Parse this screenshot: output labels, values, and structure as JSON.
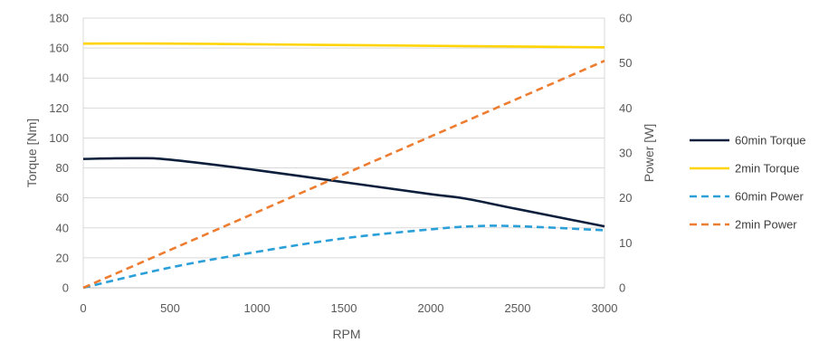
{
  "chart_data": {
    "type": "line",
    "title": "",
    "xlabel": "RPM",
    "ylabel_left": "Torque [Nm]",
    "ylabel_right": "Power [W]",
    "xlim": [
      0,
      3000
    ],
    "ylim_left": [
      0,
      180
    ],
    "ylim_right": [
      0,
      60
    ],
    "x_ticks": [
      0,
      500,
      1000,
      1500,
      2000,
      2500,
      3000
    ],
    "y_left_ticks": [
      0,
      20,
      40,
      60,
      80,
      100,
      120,
      140,
      160,
      180
    ],
    "y_right_ticks": [
      0,
      10,
      20,
      30,
      40,
      50,
      60
    ],
    "grid": "horizontal",
    "legend_position": "right",
    "series": [
      {
        "name": "60min Torque",
        "axis": "left",
        "color": "#0d1f3c",
        "dash": "solid",
        "x": [
          0,
          300,
          500,
          1000,
          1500,
          2000,
          2200,
          2500,
          3000
        ],
        "y": [
          86,
          86.5,
          85.5,
          78.5,
          70.5,
          62.5,
          59.5,
          52.5,
          41
        ]
      },
      {
        "name": "2min Torque",
        "axis": "left",
        "color": "#ffd400",
        "dash": "solid",
        "x": [
          0,
          500,
          1000,
          1500,
          2000,
          2500,
          3000
        ],
        "y": [
          163,
          163,
          162.5,
          162,
          161.5,
          161,
          160.5
        ]
      },
      {
        "name": "60min Power",
        "axis": "right",
        "color": "#2a9fd8",
        "dash": "dashed",
        "x": [
          0,
          500,
          1000,
          1500,
          2000,
          2250,
          2500,
          3000
        ],
        "y": [
          0,
          4.5,
          8,
          11,
          13,
          13.7,
          13.7,
          12.8
        ]
      },
      {
        "name": "2min Power",
        "axis": "right",
        "color": "#ed7d31",
        "dash": "dashed",
        "x": [
          0,
          3000
        ],
        "y": [
          0,
          50.5
        ]
      }
    ]
  }
}
